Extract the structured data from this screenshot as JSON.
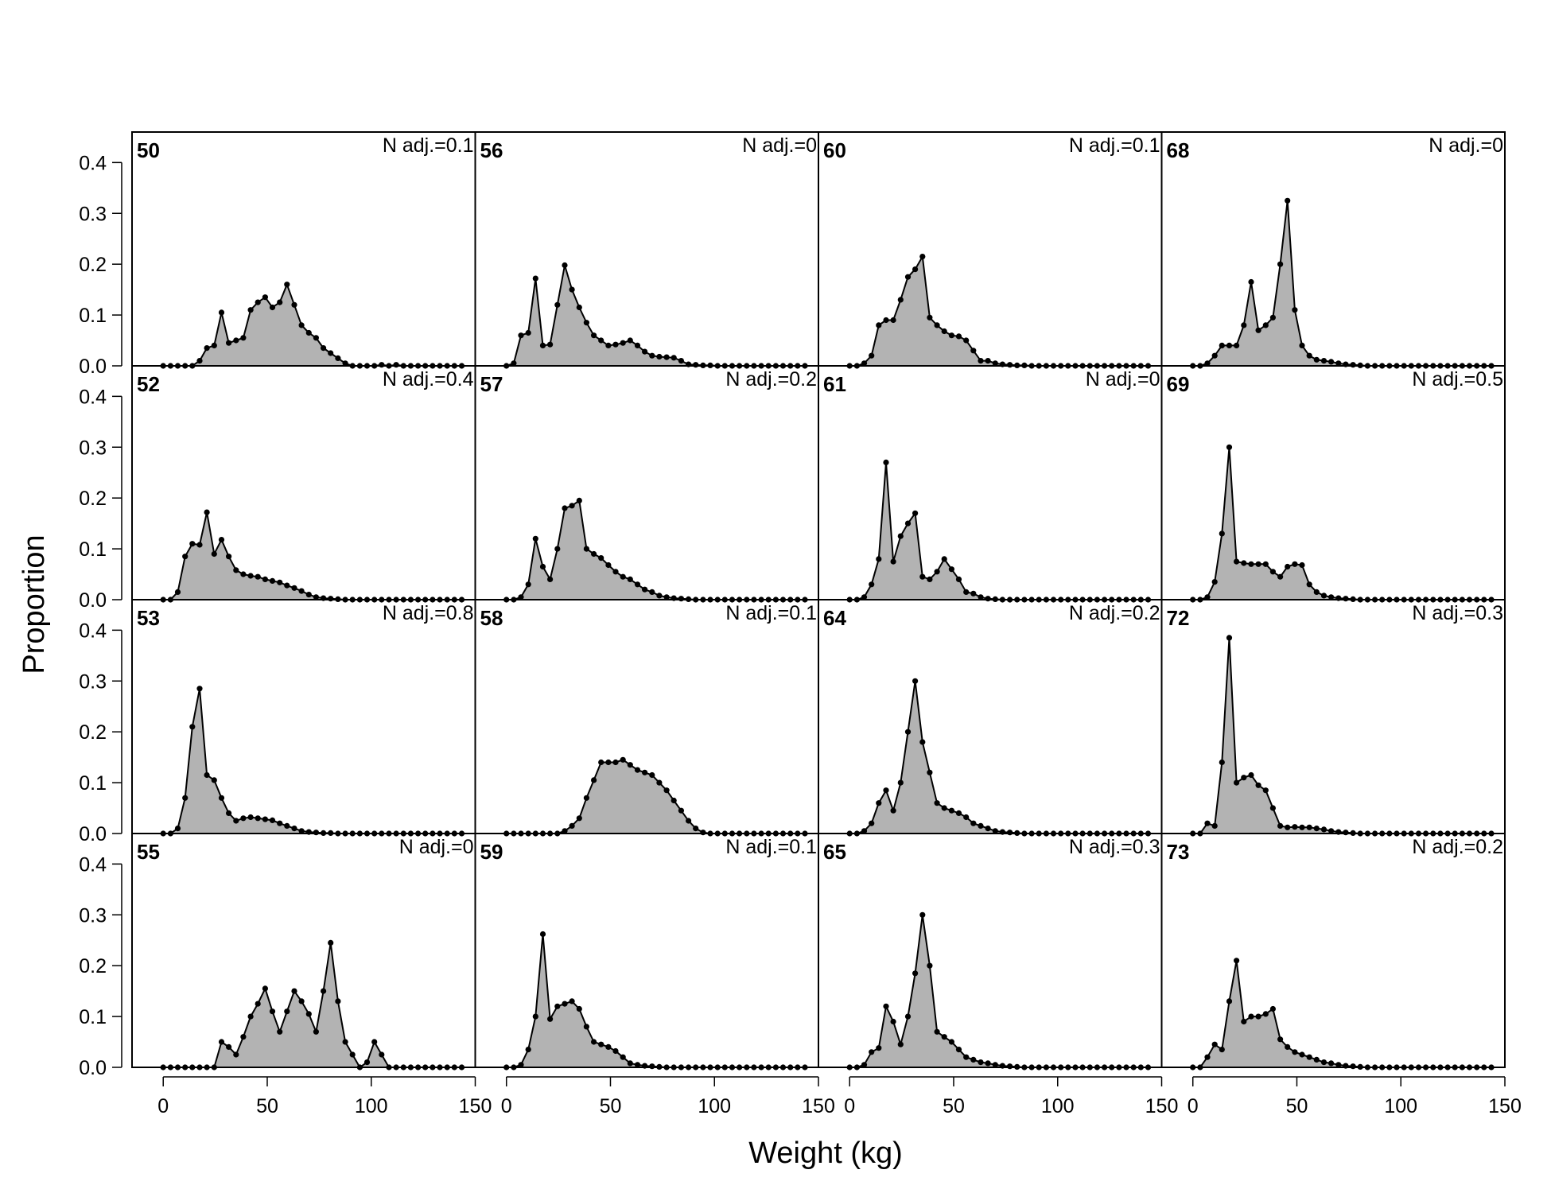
{
  "chart_data": {
    "type": "area",
    "title": "",
    "xlabel": "Weight (kg)",
    "ylabel": "Proportion",
    "xlim": [
      -15,
      150
    ],
    "ylim": [
      0,
      0.46
    ],
    "xticks": [
      0,
      50,
      100,
      150
    ],
    "yticks": [
      0.0,
      0.1,
      0.2,
      0.3,
      0.4
    ],
    "xtick_labels": [
      "0",
      "50",
      "100",
      "150"
    ],
    "ytick_labels": [
      "0.0",
      "0.1",
      "0.2",
      "0.3",
      "0.4"
    ],
    "bin_start": 0,
    "bin_width": 3.5,
    "colors": {
      "fill": "#b3b3b3",
      "line": "#000000"
    },
    "grid": false,
    "layout": {
      "rows": 4,
      "cols": 4,
      "order": "column-major"
    },
    "panels": [
      {
        "label": "50",
        "annotation": "N adj.=0.1",
        "values": [
          0,
          0,
          0,
          0,
          0,
          0.01,
          0.035,
          0.04,
          0.105,
          0.045,
          0.05,
          0.055,
          0.11,
          0.125,
          0.135,
          0.115,
          0.125,
          0.16,
          0.12,
          0.08,
          0.065,
          0.055,
          0.035,
          0.025,
          0.015,
          0.005,
          0,
          0,
          0,
          0,
          0.002,
          0,
          0.002,
          0,
          0,
          0,
          0,
          0,
          0,
          0,
          0,
          0
        ]
      },
      {
        "label": "52",
        "annotation": "N adj.=0.4",
        "values": [
          0,
          0,
          0.015,
          0.085,
          0.11,
          0.108,
          0.172,
          0.09,
          0.118,
          0.085,
          0.058,
          0.05,
          0.047,
          0.045,
          0.04,
          0.037,
          0.034,
          0.028,
          0.023,
          0.017,
          0.01,
          0.005,
          0.003,
          0.002,
          0.001,
          0,
          0,
          0,
          0,
          0,
          0,
          0,
          0,
          0,
          0,
          0,
          0,
          0,
          0,
          0,
          0,
          0
        ]
      },
      {
        "label": "53",
        "annotation": "N adj.=0.8",
        "values": [
          0,
          0,
          0.01,
          0.07,
          0.21,
          0.285,
          0.115,
          0.105,
          0.07,
          0.04,
          0.025,
          0.03,
          0.032,
          0.03,
          0.028,
          0.026,
          0.02,
          0.015,
          0.01,
          0.005,
          0.003,
          0.002,
          0.001,
          0.001,
          0,
          0,
          0,
          0,
          0,
          0,
          0,
          0,
          0,
          0,
          0,
          0,
          0,
          0,
          0,
          0,
          0,
          0
        ]
      },
      {
        "label": "55",
        "annotation": "N adj.=0",
        "values": [
          0,
          0,
          0,
          0,
          0,
          0,
          0,
          0,
          0.05,
          0.04,
          0.025,
          0.06,
          0.1,
          0.125,
          0.155,
          0.11,
          0.07,
          0.11,
          0.15,
          0.13,
          0.105,
          0.07,
          0.15,
          0.245,
          0.13,
          0.05,
          0.025,
          0,
          0.01,
          0.05,
          0.025,
          0,
          0,
          0,
          0,
          0,
          0,
          0,
          0,
          0,
          0,
          0
        ]
      },
      {
        "label": "56",
        "annotation": "N adj.=0",
        "values": [
          0,
          0.005,
          0.06,
          0.065,
          0.172,
          0.04,
          0.042,
          0.12,
          0.198,
          0.15,
          0.115,
          0.085,
          0.06,
          0.05,
          0.04,
          0.042,
          0.045,
          0.05,
          0.04,
          0.028,
          0.02,
          0.018,
          0.017,
          0.016,
          0.01,
          0.003,
          0.002,
          0.001,
          0.001,
          0,
          0,
          0,
          0,
          0,
          0,
          0,
          0,
          0,
          0,
          0,
          0,
          0
        ]
      },
      {
        "label": "57",
        "annotation": "N adj.=0.2",
        "values": [
          0,
          0,
          0.005,
          0.03,
          0.12,
          0.065,
          0.04,
          0.1,
          0.18,
          0.185,
          0.195,
          0.1,
          0.09,
          0.082,
          0.068,
          0.055,
          0.045,
          0.04,
          0.03,
          0.02,
          0.015,
          0.008,
          0.005,
          0.003,
          0.002,
          0.001,
          0,
          0,
          0,
          0,
          0,
          0,
          0,
          0,
          0,
          0,
          0,
          0,
          0,
          0,
          0,
          0
        ]
      },
      {
        "label": "58",
        "annotation": "N adj.=0.1",
        "values": [
          0,
          0,
          0,
          0,
          0,
          0,
          0,
          0,
          0.005,
          0.015,
          0.03,
          0.07,
          0.105,
          0.14,
          0.14,
          0.14,
          0.145,
          0.135,
          0.125,
          0.12,
          0.115,
          0.1,
          0.085,
          0.065,
          0.045,
          0.025,
          0.01,
          0.002,
          0,
          0,
          0,
          0,
          0,
          0,
          0,
          0,
          0,
          0,
          0,
          0,
          0,
          0
        ]
      },
      {
        "label": "59",
        "annotation": "N adj.=0.1",
        "values": [
          0,
          0,
          0.005,
          0.035,
          0.1,
          0.262,
          0.095,
          0.12,
          0.125,
          0.13,
          0.115,
          0.08,
          0.05,
          0.045,
          0.04,
          0.032,
          0.02,
          0.008,
          0.005,
          0.003,
          0.002,
          0.001,
          0,
          0,
          0,
          0,
          0,
          0,
          0,
          0,
          0,
          0,
          0,
          0,
          0,
          0,
          0,
          0,
          0,
          0,
          0,
          0
        ]
      },
      {
        "label": "60",
        "annotation": "N adj.=0.1",
        "values": [
          0,
          0,
          0.005,
          0.02,
          0.08,
          0.09,
          0.09,
          0.13,
          0.175,
          0.19,
          0.215,
          0.095,
          0.08,
          0.068,
          0.06,
          0.058,
          0.05,
          0.03,
          0.01,
          0.01,
          0.005,
          0.003,
          0.002,
          0.001,
          0.001,
          0,
          0,
          0,
          0,
          0,
          0,
          0,
          0,
          0,
          0,
          0,
          0,
          0,
          0,
          0,
          0,
          0
        ]
      },
      {
        "label": "61",
        "annotation": "N adj.=0",
        "values": [
          0,
          0,
          0.005,
          0.03,
          0.08,
          0.27,
          0.075,
          0.125,
          0.15,
          0.17,
          0.045,
          0.04,
          0.055,
          0.08,
          0.06,
          0.04,
          0.015,
          0.012,
          0.005,
          0.002,
          0.001,
          0,
          0,
          0,
          0,
          0,
          0,
          0,
          0,
          0,
          0,
          0,
          0,
          0,
          0,
          0,
          0,
          0,
          0,
          0,
          0,
          0
        ]
      },
      {
        "label": "64",
        "annotation": "N adj.=0.2",
        "values": [
          0,
          0,
          0.005,
          0.02,
          0.06,
          0.085,
          0.045,
          0.1,
          0.2,
          0.3,
          0.18,
          0.12,
          0.06,
          0.05,
          0.045,
          0.04,
          0.032,
          0.02,
          0.015,
          0.01,
          0.005,
          0.003,
          0.002,
          0.001,
          0,
          0,
          0,
          0,
          0,
          0,
          0,
          0,
          0,
          0,
          0,
          0,
          0,
          0,
          0,
          0,
          0,
          0
        ]
      },
      {
        "label": "65",
        "annotation": "N adj.=0.3",
        "values": [
          0,
          0,
          0.005,
          0.03,
          0.038,
          0.12,
          0.09,
          0.045,
          0.1,
          0.185,
          0.3,
          0.2,
          0.07,
          0.06,
          0.05,
          0.035,
          0.02,
          0.015,
          0.01,
          0.008,
          0.005,
          0.003,
          0.002,
          0.001,
          0,
          0,
          0,
          0,
          0,
          0,
          0,
          0,
          0,
          0,
          0,
          0,
          0,
          0,
          0,
          0,
          0,
          0
        ]
      },
      {
        "label": "68",
        "annotation": "N adj.=0",
        "values": [
          0,
          0,
          0.005,
          0.02,
          0.04,
          0.04,
          0.04,
          0.08,
          0.165,
          0.07,
          0.08,
          0.095,
          0.2,
          0.325,
          0.11,
          0.04,
          0.02,
          0.012,
          0.01,
          0.008,
          0.005,
          0.003,
          0.002,
          0.001,
          0,
          0,
          0,
          0,
          0,
          0,
          0,
          0,
          0,
          0,
          0,
          0,
          0,
          0,
          0,
          0,
          0,
          0
        ]
      },
      {
        "label": "69",
        "annotation": "N adj.=0.5",
        "values": [
          0,
          0,
          0.005,
          0.035,
          0.13,
          0.3,
          0.075,
          0.072,
          0.07,
          0.07,
          0.07,
          0.055,
          0.045,
          0.065,
          0.07,
          0.068,
          0.03,
          0.015,
          0.008,
          0.005,
          0.003,
          0.002,
          0.001,
          0,
          0,
          0,
          0,
          0,
          0,
          0,
          0,
          0,
          0,
          0,
          0,
          0,
          0,
          0,
          0,
          0,
          0,
          0
        ]
      },
      {
        "label": "72",
        "annotation": "N adj.=0.3",
        "values": [
          0,
          0,
          0.02,
          0.015,
          0.14,
          0.385,
          0.1,
          0.11,
          0.115,
          0.095,
          0.085,
          0.05,
          0.015,
          0.012,
          0.013,
          0.012,
          0.012,
          0.01,
          0.008,
          0.005,
          0.003,
          0.002,
          0.001,
          0,
          0,
          0,
          0,
          0,
          0,
          0,
          0,
          0,
          0,
          0,
          0,
          0,
          0,
          0,
          0,
          0,
          0,
          0
        ]
      },
      {
        "label": "73",
        "annotation": "N adj.=0.2",
        "values": [
          0,
          0,
          0.02,
          0.045,
          0.035,
          0.13,
          0.21,
          0.09,
          0.1,
          0.1,
          0.105,
          0.115,
          0.055,
          0.04,
          0.03,
          0.025,
          0.02,
          0.015,
          0.01,
          0.008,
          0.005,
          0.003,
          0.002,
          0.001,
          0,
          0,
          0,
          0,
          0,
          0,
          0,
          0,
          0,
          0,
          0,
          0,
          0,
          0,
          0,
          0,
          0,
          0
        ]
      }
    ]
  }
}
